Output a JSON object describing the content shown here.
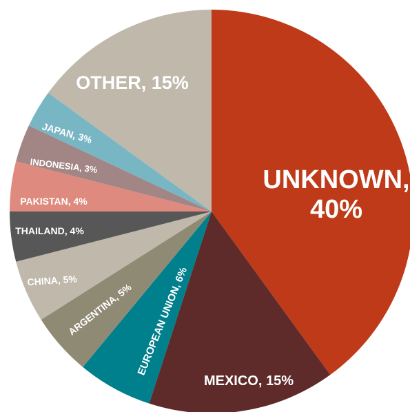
{
  "chart_data": {
    "type": "pie",
    "title": "",
    "start_angle_deg": 0,
    "direction": "clockwise",
    "slices": [
      {
        "name": "UNKNOWN",
        "value": 40,
        "label_line1": "UNKNOWN,",
        "label_line2": "40%",
        "color": "#bf3a18"
      },
      {
        "name": "MEXICO",
        "value": 15,
        "label": "MEXICO, 15%",
        "color": "#5e2b2a"
      },
      {
        "name": "EUROPEAN UNION",
        "value": 6,
        "label": "EUROPEAN UNION, 6%",
        "color": "#007f8c"
      },
      {
        "name": "ARGENTINA",
        "value": 5,
        "label": "ARGENTINA, 5%",
        "color": "#8f8a74"
      },
      {
        "name": "CHINA",
        "value": 5,
        "label": "CHINA, 5%",
        "color": "#bfb8ab"
      },
      {
        "name": "THAILAND",
        "value": 4,
        "label": "THAILAND, 4%",
        "color": "#575757"
      },
      {
        "name": "PAKISTAN",
        "value": 4,
        "label": "PAKISTAN, 4%",
        "color": "#df8a7e"
      },
      {
        "name": "INDONESIA",
        "value": 3,
        "label": "INDONESIA, 3%",
        "color": "#a28685"
      },
      {
        "name": "JAPAN",
        "value": 3,
        "label": "JAPAN, 3%",
        "color": "#79b6c4"
      },
      {
        "name": "OTHER",
        "value": 15,
        "label": "OTHER, 15%",
        "color": "#bfb8ab"
      }
    ]
  }
}
